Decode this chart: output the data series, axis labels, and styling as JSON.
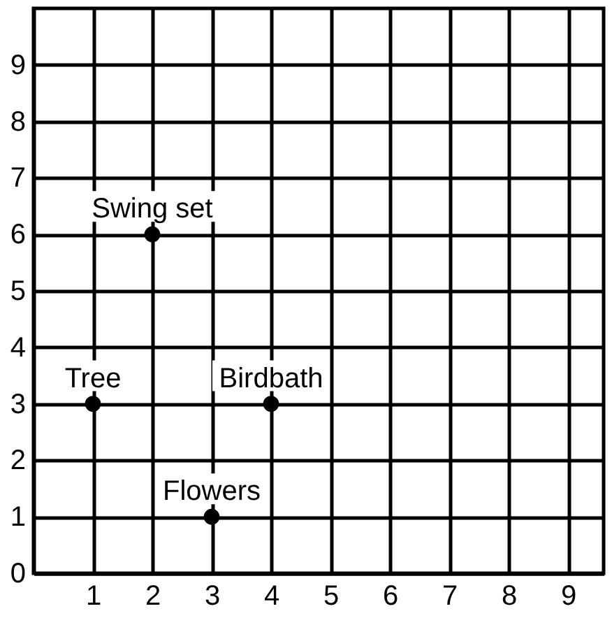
{
  "chart_data": {
    "type": "scatter",
    "x": [
      1,
      2,
      4,
      3
    ],
    "series": [
      {
        "color": "#000000",
        "values": [
          3,
          6,
          3,
          1
        ]
      }
    ],
    "xlim": [
      0,
      9.6
    ],
    "ylim": [
      0,
      10
    ],
    "xticks": [
      1,
      2,
      3,
      4,
      5,
      6,
      7,
      8,
      9
    ],
    "yticks": [
      0,
      1,
      2,
      3,
      4,
      5,
      6,
      7,
      8,
      9
    ],
    "grid": true,
    "marker": "circle",
    "legend": false,
    "annotations": [
      {
        "text": "Tree",
        "x": 1,
        "y": 3
      },
      {
        "text": "Swing set",
        "x": 2,
        "y": 6
      },
      {
        "text": "Birdbath",
        "x": 4,
        "y": 3
      },
      {
        "text": "Flowers",
        "x": 3,
        "y": 1
      }
    ]
  }
}
